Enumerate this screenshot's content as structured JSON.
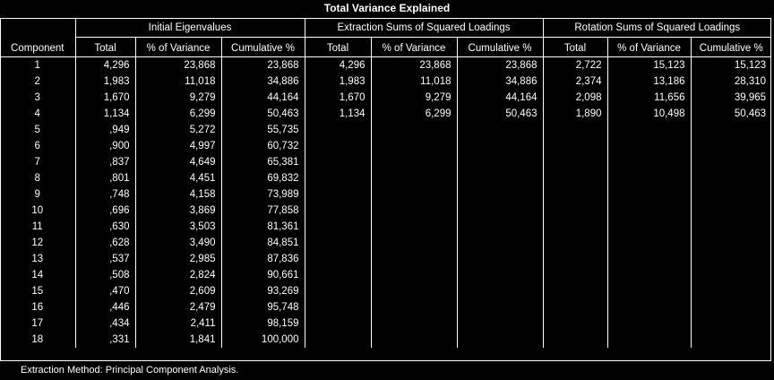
{
  "title": "Total Variance Explained",
  "header": {
    "component": "Component",
    "groups": [
      "Initial Eigenvalues",
      "Extraction Sums of Squared Loadings",
      "Rotation Sums of Squared Loadings"
    ],
    "sub": [
      "Total",
      "% of Variance",
      "Cumulative %"
    ]
  },
  "rows": [
    {
      "c": "1",
      "i": [
        "4,296",
        "23,868",
        "23,868"
      ],
      "e": [
        "4,296",
        "23,868",
        "23,868"
      ],
      "r": [
        "2,722",
        "15,123",
        "15,123"
      ]
    },
    {
      "c": "2",
      "i": [
        "1,983",
        "11,018",
        "34,886"
      ],
      "e": [
        "1,983",
        "11,018",
        "34,886"
      ],
      "r": [
        "2,374",
        "13,186",
        "28,310"
      ]
    },
    {
      "c": "3",
      "i": [
        "1,670",
        "9,279",
        "44,164"
      ],
      "e": [
        "1,670",
        "9,279",
        "44,164"
      ],
      "r": [
        "2,098",
        "11,656",
        "39,965"
      ]
    },
    {
      "c": "4",
      "i": [
        "1,134",
        "6,299",
        "50,463"
      ],
      "e": [
        "1,134",
        "6,299",
        "50,463"
      ],
      "r": [
        "1,890",
        "10,498",
        "50,463"
      ]
    },
    {
      "c": "5",
      "i": [
        ",949",
        "5,272",
        "55,735"
      ]
    },
    {
      "c": "6",
      "i": [
        ",900",
        "4,997",
        "60,732"
      ]
    },
    {
      "c": "7",
      "i": [
        ",837",
        "4,649",
        "65,381"
      ]
    },
    {
      "c": "8",
      "i": [
        ",801",
        "4,451",
        "69,832"
      ]
    },
    {
      "c": "9",
      "i": [
        ",748",
        "4,158",
        "73,989"
      ]
    },
    {
      "c": "10",
      "i": [
        ",696",
        "3,869",
        "77,858"
      ]
    },
    {
      "c": "11",
      "i": [
        ",630",
        "3,503",
        "81,361"
      ]
    },
    {
      "c": "12",
      "i": [
        ",628",
        "3,490",
        "84,851"
      ]
    },
    {
      "c": "13",
      "i": [
        ",537",
        "2,985",
        "87,836"
      ]
    },
    {
      "c": "14",
      "i": [
        ",508",
        "2,824",
        "90,661"
      ]
    },
    {
      "c": "15",
      "i": [
        ",470",
        "2,609",
        "93,269"
      ]
    },
    {
      "c": "16",
      "i": [
        ",446",
        "2,479",
        "95,748"
      ]
    },
    {
      "c": "17",
      "i": [
        ",434",
        "2,411",
        "98,159"
      ]
    },
    {
      "c": "18",
      "i": [
        ",331",
        "1,841",
        "100,000"
      ]
    }
  ],
  "footnote": "Extraction Method: Principal Component Analysis."
}
